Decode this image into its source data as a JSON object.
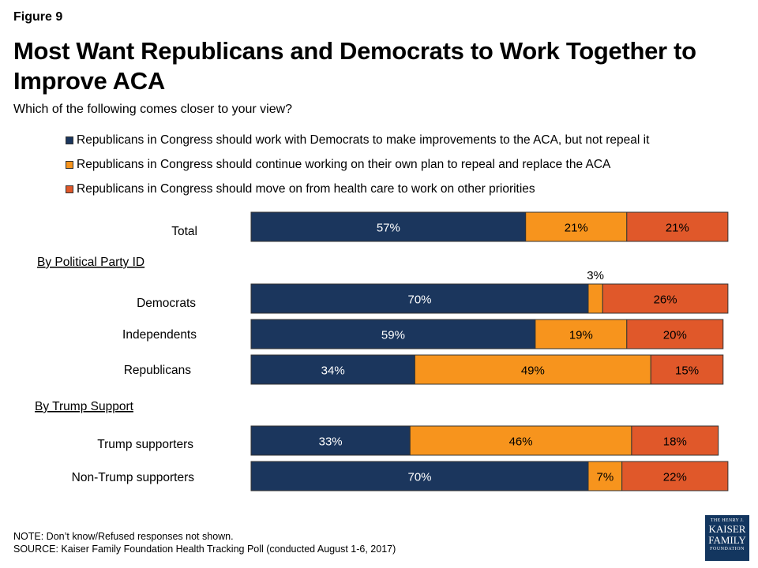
{
  "figure_label": "Figure 9",
  "title": "Most Want Republicans and Democrats to Work Together to Improve ACA",
  "subtitle": "Which of the following comes closer to your view?",
  "colors": {
    "navy": "#1b365d",
    "orange": "#f7941d",
    "red": "#e0582a",
    "bar_border": "#333333"
  },
  "legend": [
    {
      "label": "Republicans in Congress should work with Democrats to make improvements to the ACA, but not repeal it",
      "color": "#1b365d"
    },
    {
      "label": "Republicans in Congress should continue working on their own plan to repeal and replace the ACA",
      "color": "#f7941d"
    },
    {
      "label": "Republicans in Congress should move on from health care to work on other priorities",
      "color": "#e0582a"
    }
  ],
  "chart_data": {
    "type": "bar",
    "orientation": "horizontal",
    "stacked": true,
    "unit": "%",
    "xlim": [
      0,
      100
    ],
    "sections": [
      {
        "heading": "",
        "groups": [
          "Total"
        ]
      },
      {
        "heading": "By Political Party ID",
        "groups": [
          "Democrats",
          "Independents",
          "Republicans"
        ]
      },
      {
        "heading": "By Trump Support",
        "groups": [
          "Trump supporters",
          "Non-Trump supporters"
        ]
      }
    ],
    "categories": [
      "Total",
      "Democrats",
      "Independents",
      "Republicans",
      "Trump supporters",
      "Non-Trump supporters"
    ],
    "series": [
      {
        "name": "Republicans in Congress should work with Democrats to make improvements to the ACA, but not repeal it",
        "color": "#1b365d",
        "values": [
          57,
          70,
          59,
          34,
          33,
          70
        ],
        "labels": [
          "57%",
          "70%",
          "59%",
          "34%",
          "33%",
          "70%"
        ]
      },
      {
        "name": "Republicans in Congress should continue working on their own plan to repeal and replace the ACA",
        "color": "#f7941d",
        "values": [
          21,
          3,
          19,
          49,
          46,
          7
        ],
        "labels": [
          "21%",
          "3%",
          "19%",
          "49%",
          "46%",
          "7%"
        ]
      },
      {
        "name": "Republicans in Congress should move on from health care to work on other priorities",
        "color": "#e0582a",
        "values": [
          21,
          26,
          20,
          15,
          18,
          22
        ],
        "labels": [
          "21%",
          "26%",
          "20%",
          "15%",
          "18%",
          "22%"
        ]
      }
    ]
  },
  "footer": {
    "note": "NOTE: Don’t know/Refused responses not shown.",
    "source": "SOURCE: Kaiser Family Foundation Health Tracking Poll (conducted August 1-6, 2017)"
  },
  "logo": {
    "line1": "THE HENRY J.",
    "line2": "KAISER",
    "line3": "FAMILY",
    "line4": "FOUNDATION"
  }
}
